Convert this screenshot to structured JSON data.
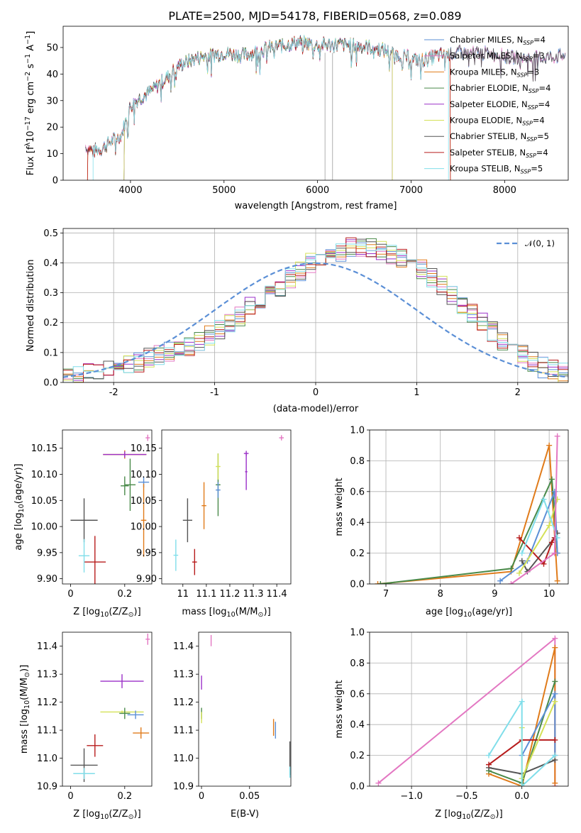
{
  "chart_data": [
    {
      "id": "spectrum",
      "type": "line",
      "title": "PLATE=2500, MJD=54178, FIBERID=0568, z=0.089",
      "xlabel": "wavelength [Angstrom, rest frame]",
      "ylabel_parts": [
        "Flux [f",
        "λ",
        "10",
        "−17",
        " erg cm",
        "−2",
        " s",
        "−1",
        " A",
        "−1",
        "]"
      ],
      "xlim": [
        3280,
        8680
      ],
      "ylim": [
        0,
        58
      ],
      "xticks": [
        4000,
        5000,
        6000,
        7000,
        8000
      ],
      "yticks": [
        0,
        10,
        20,
        30,
        40,
        50
      ],
      "grid": false,
      "legend_position": "top-right",
      "series": [
        {
          "label": "Chabrier MILES",
          "nssp": 4,
          "color": "#5b8fd6"
        },
        {
          "label": "Salpeter MILES",
          "nssp": 3,
          "color": "#e377c2"
        },
        {
          "label": "Kroupa MILES",
          "nssp": 3,
          "color": "#e07b1a"
        },
        {
          "label": "Chabrier ELODIE",
          "nssp": 4,
          "color": "#4a8a4a"
        },
        {
          "label": "Salpeter ELODIE",
          "nssp": 4,
          "color": "#9b30c8"
        },
        {
          "label": "Kroupa ELODIE",
          "nssp": 4,
          "color": "#d4e157"
        },
        {
          "label": "Chabrier STELIB",
          "nssp": 5,
          "color": "#555555"
        },
        {
          "label": "Salpeter STELIB",
          "nssp": 4,
          "color": "#b71c1c"
        },
        {
          "label": "Kroupa STELIB",
          "nssp": 5,
          "color": "#80deea"
        }
      ],
      "nssp_label": "N",
      "nssp_sub": "SSP",
      "continuum": {
        "x": [
          3520,
          3600,
          3700,
          3800,
          3900,
          3950,
          4000,
          4100,
          4200,
          4300,
          4400,
          4500,
          4700,
          5000,
          5200,
          5500,
          5800,
          6000,
          6300,
          6600,
          6800,
          7000,
          7100,
          7300,
          7500,
          7800,
          8100,
          8400,
          8650
        ],
        "y": [
          13,
          11,
          12,
          15,
          17,
          22,
          28,
          31,
          33,
          36,
          39,
          43,
          46,
          48,
          47,
          50,
          52,
          51,
          51,
          50,
          48,
          46,
          45,
          47,
          48,
          48,
          46,
          46,
          47
        ]
      }
    },
    {
      "id": "residuals",
      "type": "histogram",
      "xlabel": "(data-model)/error",
      "ylabel": "Normed distribution",
      "xlim": [
        -2.5,
        2.5
      ],
      "ylim": [
        0,
        0.515
      ],
      "xticks": [
        -2,
        -1,
        0,
        1,
        2
      ],
      "yticks": [
        0.0,
        0.1,
        0.2,
        0.3,
        0.4,
        0.5
      ],
      "grid": true,
      "legend": [
        {
          "label": "𝒩(0, 1)",
          "style": "dashed",
          "color": "#5b8fd6"
        }
      ],
      "legend_position": "top-right",
      "bin_width": 0.1,
      "bin_start": -2.5,
      "base_hist": [
        0.02,
        0.02,
        0.03,
        0.03,
        0.04,
        0.05,
        0.06,
        0.07,
        0.08,
        0.09,
        0.1,
        0.11,
        0.12,
        0.14,
        0.16,
        0.18,
        0.2,
        0.22,
        0.25,
        0.28,
        0.3,
        0.32,
        0.35,
        0.37,
        0.4,
        0.42,
        0.43,
        0.44,
        0.45,
        0.45,
        0.45,
        0.44,
        0.43,
        0.42,
        0.4,
        0.38,
        0.35,
        0.32,
        0.29,
        0.26,
        0.23,
        0.2,
        0.17,
        0.14,
        0.11,
        0.09,
        0.07,
        0.05,
        0.04,
        0.03
      ]
    },
    {
      "id": "age-vs-Z",
      "type": "scatter",
      "xlabel_parts": [
        "Z [log",
        "10",
        "(Z/Z",
        "⊙",
        ")]"
      ],
      "ylabel_parts": [
        "age  [log",
        "10",
        "(age/yr)]"
      ],
      "xlim": [
        -0.03,
        0.3
      ],
      "ylim": [
        9.89,
        10.185
      ],
      "xticks": [
        0.0,
        0.2
      ],
      "yticks": [
        9.9,
        9.95,
        10.0,
        10.05,
        10.1,
        10.15
      ],
      "ytick_format": 2,
      "points": [
        {
          "x": 0.05,
          "y": 10.012,
          "xerr": 0.05,
          "yerr": 0.042,
          "color": "#555555"
        },
        {
          "x": 0.09,
          "y": 9.932,
          "xerr": 0.04,
          "yerr": 0.05,
          "color": "#b71c1c"
        },
        {
          "x": 0.05,
          "y": 9.944,
          "xerr": 0.02,
          "yerr": 0.032,
          "color": "#80deea"
        },
        {
          "x": 0.2,
          "y": 10.138,
          "xerr": 0.08,
          "yerr": 0.008,
          "color": "#e07b1a"
        },
        {
          "x": 0.2,
          "y": 10.138,
          "xerr": 0.08,
          "yerr": 0.006,
          "color": "#9b30c8"
        },
        {
          "x": 0.2,
          "y": 10.078,
          "xerr": 0.015,
          "yerr": 0.018,
          "color": "#4a8a4a"
        },
        {
          "x": 0.22,
          "y": 10.08,
          "xerr": 0.02,
          "yerr": 0.05,
          "color": "#4a8a4a"
        },
        {
          "x": 0.27,
          "y": 10.085,
          "xerr": 0.02,
          "yerr": 0.01,
          "color": "#5b8fd6"
        },
        {
          "x": 0.27,
          "y": 10.012,
          "xerr": 0.01,
          "yerr": 0.07,
          "color": "#e07b1a"
        },
        {
          "x": 0.285,
          "y": 10.17,
          "xerr": 0.008,
          "yerr": 0.006,
          "color": "#e377c2"
        }
      ]
    },
    {
      "id": "age-vs-mass",
      "type": "scatter",
      "xlabel_parts": [
        "mass [log",
        "10",
        "(M/M",
        "⊙",
        ")]"
      ],
      "xlim": [
        10.91,
        11.46
      ],
      "ylim": [
        9.89,
        10.185
      ],
      "xticks": [
        11.0,
        11.1,
        11.2,
        11.3,
        11.4
      ],
      "yticks": [
        9.9,
        9.95,
        10.0,
        10.05,
        10.1,
        10.15
      ],
      "ytick_format": 2,
      "points": [
        {
          "x": 11.02,
          "y": 10.012,
          "xerr": 0.02,
          "yerr": 0.042,
          "color": "#555555"
        },
        {
          "x": 11.05,
          "y": 9.932,
          "xerr": 0.01,
          "yerr": 0.025,
          "color": "#b71c1c"
        },
        {
          "x": 10.97,
          "y": 9.945,
          "xerr": 0.01,
          "yerr": 0.03,
          "color": "#80deea"
        },
        {
          "x": 11.09,
          "y": 10.04,
          "xerr": 0.01,
          "yerr": 0.045,
          "color": "#e07b1a"
        },
        {
          "x": 11.15,
          "y": 10.08,
          "xerr": 0.01,
          "yerr": 0.06,
          "color": "#4a8a4a"
        },
        {
          "x": 11.15,
          "y": 10.115,
          "xerr": 0.01,
          "yerr": 0.025,
          "color": "#d4e157"
        },
        {
          "x": 11.15,
          "y": 10.07,
          "xerr": 0.01,
          "yerr": 0.015,
          "color": "#5b8fd6"
        },
        {
          "x": 11.27,
          "y": 10.14,
          "xerr": 0.01,
          "yerr": 0.005,
          "color": "#9b30c8"
        },
        {
          "x": 11.27,
          "y": 10.105,
          "xerr": 0.005,
          "yerr": 0.035,
          "color": "#9b30c8"
        },
        {
          "x": 11.42,
          "y": 10.17,
          "xerr": 0.01,
          "yerr": 0.005,
          "color": "#e377c2"
        }
      ]
    },
    {
      "id": "weight-vs-age",
      "type": "line",
      "xlabel_parts": [
        "age  [log",
        "10",
        "(age/yr)]"
      ],
      "ylabel": "mass weight",
      "xlim": [
        6.7,
        10.35
      ],
      "ylim": [
        0,
        1
      ],
      "xticks": [
        7,
        8,
        9,
        10
      ],
      "yticks": [
        0.0,
        0.2,
        0.4,
        0.6,
        0.8,
        1.0
      ],
      "grid": true,
      "series": [
        {
          "color": "#e07b1a",
          "x": [
            6.85,
            9.3,
            10.0,
            10.15
          ],
          "y": [
            0.0,
            0.08,
            0.9,
            0.02
          ]
        },
        {
          "color": "#4a8a4a",
          "x": [
            6.9,
            9.3,
            10.05,
            10.15
          ],
          "y": [
            0.0,
            0.1,
            0.68,
            0.2
          ]
        },
        {
          "color": "#5b8fd6",
          "x": [
            9.1,
            9.6,
            10.1,
            10.15
          ],
          "y": [
            0.02,
            0.15,
            0.6,
            0.2
          ]
        },
        {
          "color": "#555555",
          "x": [
            9.5,
            9.6,
            10.1,
            10.15
          ],
          "y": [
            0.15,
            0.08,
            0.3,
            0.33
          ]
        },
        {
          "color": "#b71c1c",
          "x": [
            9.45,
            9.9,
            10.05,
            10.1
          ],
          "y": [
            0.3,
            0.13,
            0.27,
            0.3
          ]
        },
        {
          "color": "#d4e157",
          "x": [
            9.45,
            10.0,
            10.15
          ],
          "y": [
            0.07,
            0.38,
            0.55
          ]
        },
        {
          "color": "#80deea",
          "x": [
            9.5,
            9.9,
            10.15
          ],
          "y": [
            0.2,
            0.55,
            0.3
          ]
        },
        {
          "color": "#e377c2",
          "x": [
            9.3,
            10.1,
            10.15
          ],
          "y": [
            0.0,
            0.2,
            0.96
          ]
        }
      ]
    },
    {
      "id": "mass-vs-Z",
      "type": "scatter",
      "xlabel_parts": [
        "Z [log",
        "10",
        "(Z/Z",
        "⊙",
        ")]"
      ],
      "ylabel_parts": [
        "mass [log",
        "10",
        "(M/M",
        "⊙",
        ")]"
      ],
      "xlim": [
        -0.03,
        0.3
      ],
      "ylim": [
        10.9,
        11.45
      ],
      "xticks": [
        0.0,
        0.2
      ],
      "yticks": [
        10.9,
        11.0,
        11.1,
        11.2,
        11.3,
        11.4
      ],
      "ytick_format": 1,
      "points": [
        {
          "x": 0.05,
          "y": 10.975,
          "xerr": 0.05,
          "yerr": 0.06,
          "color": "#555555"
        },
        {
          "x": 0.05,
          "y": 10.945,
          "xerr": 0.04,
          "yerr": 0.02,
          "color": "#80deea"
        },
        {
          "x": 0.09,
          "y": 11.045,
          "xerr": 0.03,
          "yerr": 0.04,
          "color": "#b71c1c"
        },
        {
          "x": 0.19,
          "y": 11.275,
          "xerr": 0.08,
          "yerr": 0.025,
          "color": "#9b30c8"
        },
        {
          "x": 0.19,
          "y": 11.165,
          "xerr": 0.08,
          "yerr": 0.005,
          "color": "#d4e157"
        },
        {
          "x": 0.2,
          "y": 11.16,
          "xerr": 0.02,
          "yerr": 0.02,
          "color": "#4a8a4a"
        },
        {
          "x": 0.24,
          "y": 11.155,
          "xerr": 0.03,
          "yerr": 0.015,
          "color": "#5b8fd6"
        },
        {
          "x": 0.26,
          "y": 11.09,
          "xerr": 0.03,
          "yerr": 0.02,
          "color": "#e07b1a"
        },
        {
          "x": 0.285,
          "y": 11.425,
          "xerr": 0.008,
          "yerr": 0.02,
          "color": "#e377c2"
        }
      ]
    },
    {
      "id": "mass-vs-EBV",
      "type": "scatter",
      "xlabel": "E(B-V)",
      "xlim": [
        -0.003,
        0.093
      ],
      "ylim": [
        10.9,
        11.45
      ],
      "xticks": [
        0.0,
        0.05
      ],
      "yticks": [
        10.9,
        11.0,
        11.1,
        11.2,
        11.3,
        11.4
      ],
      "ytick_format": 1,
      "points": [
        {
          "x": 0.01,
          "y": 11.42,
          "xerr": 0.0,
          "yerr": 0.02,
          "color": "#e377c2"
        },
        {
          "x": 0.0,
          "y": 11.27,
          "xerr": 0.0,
          "yerr": 0.025,
          "color": "#9b30c8"
        },
        {
          "x": 0.0,
          "y": 11.16,
          "xerr": 0.0,
          "yerr": 0.02,
          "color": "#4a8a4a"
        },
        {
          "x": 0.0,
          "y": 11.145,
          "xerr": 0.0,
          "yerr": 0.02,
          "color": "#d4e157"
        },
        {
          "x": 0.075,
          "y": 11.11,
          "xerr": 0.0,
          "yerr": 0.03,
          "color": "#e07b1a"
        },
        {
          "x": 0.077,
          "y": 11.1,
          "xerr": 0.0,
          "yerr": 0.03,
          "color": "#5b8fd6"
        },
        {
          "x": 0.092,
          "y": 11.0,
          "xerr": 0.0,
          "yerr": 0.06,
          "color": "#555555"
        },
        {
          "x": 0.092,
          "y": 10.95,
          "xerr": 0.0,
          "yerr": 0.02,
          "color": "#80deea"
        }
      ]
    },
    {
      "id": "weight-vs-Z",
      "type": "line",
      "xlabel_parts": [
        "Z [log",
        "10",
        "(Z/Z",
        "⊙",
        ")]"
      ],
      "ylabel": "mass weight",
      "xlim": [
        -1.38,
        0.42
      ],
      "ylim": [
        0,
        1
      ],
      "xticks": [
        -1.0,
        -0.5,
        0.0
      ],
      "xtick_format": 1,
      "yticks": [
        0.0,
        0.2,
        0.4,
        0.6,
        0.8,
        1.0
      ],
      "grid": true,
      "series": [
        {
          "color": "#e377c2",
          "x": [
            -1.3,
            0.3,
            0.3
          ],
          "y": [
            0.02,
            0.96,
            0.0
          ]
        },
        {
          "color": "#e07b1a",
          "x": [
            -0.3,
            0.0,
            0.3,
            0.3
          ],
          "y": [
            0.08,
            0.0,
            0.9,
            0.02
          ]
        },
        {
          "color": "#4a8a4a",
          "x": [
            -0.3,
            0.0,
            0.3
          ],
          "y": [
            0.1,
            0.02,
            0.68
          ]
        },
        {
          "color": "#5b8fd6",
          "x": [
            0.0,
            0.3,
            0.3
          ],
          "y": [
            0.2,
            0.6,
            0.2
          ]
        },
        {
          "color": "#555555",
          "x": [
            -0.3,
            0.0,
            0.3
          ],
          "y": [
            0.12,
            0.08,
            0.17
          ]
        },
        {
          "color": "#b71c1c",
          "x": [
            -0.3,
            0.0,
            0.3
          ],
          "y": [
            0.14,
            0.3,
            0.3
          ]
        },
        {
          "color": "#d4e157",
          "x": [
            0.0,
            0.0,
            0.3
          ],
          "y": [
            0.38,
            0.05,
            0.55
          ]
        },
        {
          "color": "#80deea",
          "x": [
            -0.3,
            0.0,
            0.0,
            0.3
          ],
          "y": [
            0.2,
            0.55,
            0.0,
            0.2
          ]
        }
      ]
    }
  ]
}
